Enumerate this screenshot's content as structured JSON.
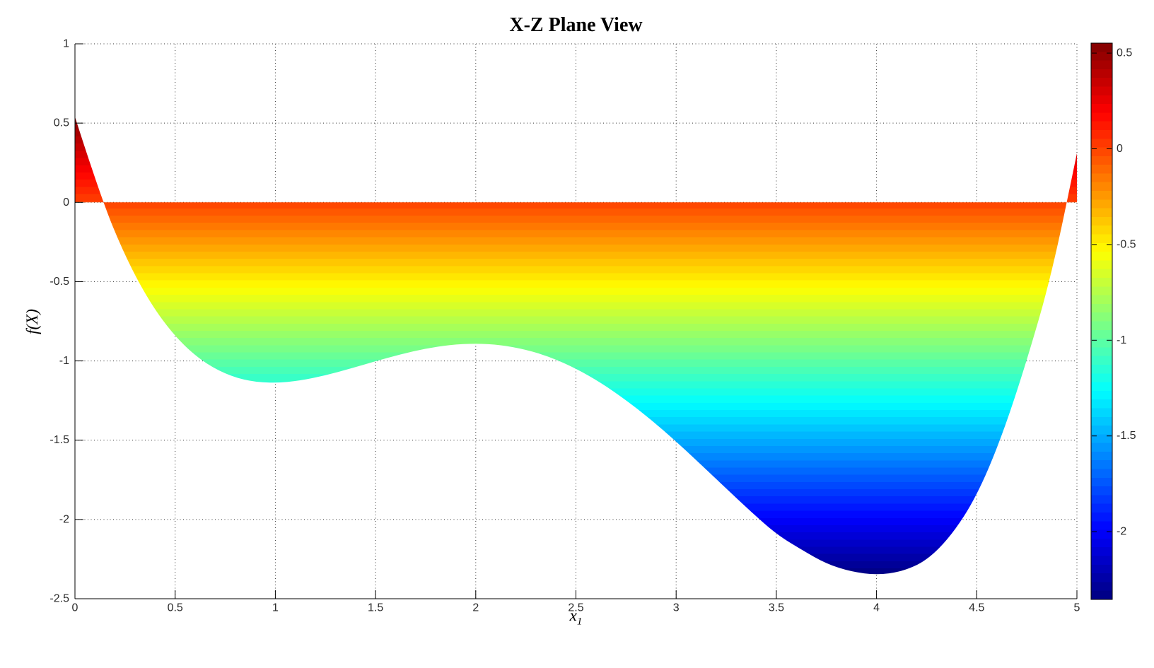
{
  "title": "X-Z Plane View",
  "axes": {
    "xlabel_base": "x",
    "xlabel_sub": "1",
    "ylabel": "f(X)",
    "x_tick_labels": [
      "0",
      "0.5",
      "1",
      "1.5",
      "2",
      "2.5",
      "3",
      "3.5",
      "4",
      "4.5",
      "5"
    ],
    "x_tick_values": [
      0,
      0.5,
      1,
      1.5,
      2,
      2.5,
      3,
      3.5,
      4,
      4.5,
      5
    ],
    "y_tick_labels": [
      "1",
      "0.5",
      "0",
      "-0.5",
      "-1",
      "-1.5",
      "-2",
      "-2.5"
    ],
    "y_tick_values": [
      1,
      0.5,
      0,
      -0.5,
      -1,
      -1.5,
      -2,
      -2.5
    ],
    "grid_style": "dotted",
    "axis_color": "#000000",
    "tick_label_color": "#2b2b2b"
  },
  "colorbar": {
    "tick_labels": [
      "0.5",
      "0",
      "-0.5",
      "-1",
      "-1.5",
      "-2"
    ],
    "tick_values": [
      0.5,
      0,
      -0.5,
      -1,
      -1.5,
      -2
    ],
    "cmin": -2.354,
    "cmax": 0.552,
    "colormap": "jet",
    "n_bands": 64
  },
  "jet_anchors": [
    [
      0.0,
      "#000080"
    ],
    [
      0.125,
      "#0000ff"
    ],
    [
      0.375,
      "#00ffff"
    ],
    [
      0.625,
      "#ffff00"
    ],
    [
      0.875,
      "#ff0000"
    ],
    [
      1.0,
      "#800000"
    ]
  ],
  "chart_data": {
    "type": "area",
    "title": "X-Z Plane View",
    "xlabel": "x_1",
    "ylabel": "f(X)",
    "xlim": [
      0,
      5
    ],
    "ylim": [
      -2.5,
      1
    ],
    "baseline": 0,
    "fill_rule": "area between curve f(x) and z=0, colored by f value with jet colormap over [cmin, cmax]",
    "legend": "none",
    "grid": "on",
    "x": [
      0,
      0.125,
      0.25,
      0.375,
      0.5,
      0.625,
      0.75,
      0.875,
      1,
      1.125,
      1.25,
      1.375,
      1.5,
      1.625,
      1.75,
      1.875,
      2,
      2.125,
      2.25,
      2.375,
      2.5,
      2.625,
      2.75,
      2.875,
      3,
      3.125,
      3.25,
      3.375,
      3.5,
      3.625,
      3.75,
      3.875,
      4,
      4.125,
      4.25,
      4.375,
      4.5,
      4.625,
      4.75,
      4.875,
      5
    ],
    "f": [
      0.54,
      0.046,
      -0.341,
      -0.635,
      -0.848,
      -0.994,
      -1.084,
      -1.13,
      -1.14,
      -1.124,
      -1.091,
      -1.048,
      -1.002,
      -0.958,
      -0.922,
      -0.898,
      -0.89,
      -0.899,
      -0.928,
      -0.977,
      -1.048,
      -1.138,
      -1.247,
      -1.371,
      -1.508,
      -1.655,
      -1.805,
      -1.953,
      -2.093,
      -2.19,
      -2.28,
      -2.33,
      -2.35,
      -2.33,
      -2.26,
      -2.1,
      -1.853,
      -1.48,
      -1.0,
      -0.45,
      0.31
    ],
    "features": {
      "f_at_x0": 0.54,
      "zero_crossings": [
        0.135,
        4.95
      ],
      "local_min": {
        "x": 1.0,
        "f": -1.14
      },
      "local_max": {
        "x": 2.0,
        "f": -0.89
      },
      "global_min": {
        "x": 4.0,
        "f": -2.35
      },
      "f_at_x5": 0.31
    }
  }
}
